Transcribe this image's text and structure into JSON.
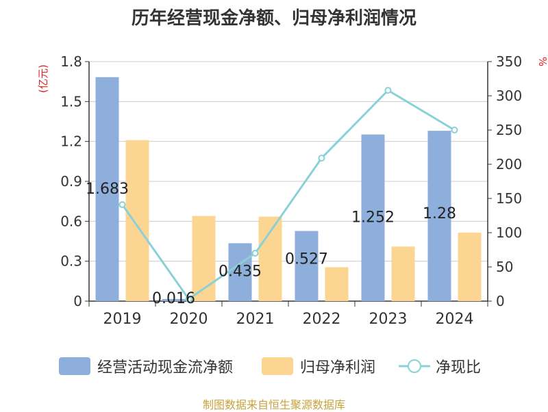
{
  "title": "历年经营现金净额、归母净利润情况",
  "source": "制图数据来自恒生聚源数据库",
  "colors": {
    "cash_flow": "#8eaedc",
    "net_profit": "#fdd592",
    "ratio": "#88d1d7",
    "axis_unit": "#e02020",
    "grid": "#cccccc",
    "text": "#333333"
  },
  "legend": {
    "cash_flow": "经营活动现金流净额",
    "net_profit": "归母净利润",
    "ratio": "净现比"
  },
  "chart_data": {
    "type": "bar",
    "title": "历年经营现金净额、归母净利润情况",
    "categories": [
      "2019",
      "2020",
      "2021",
      "2022",
      "2023",
      "2024"
    ],
    "y_left": {
      "unit": "(亿元)",
      "range": [
        0,
        1.8
      ],
      "ticks": [
        "0",
        "0.3",
        "0.6",
        "0.9",
        "1.2",
        "1.5",
        "1.8"
      ]
    },
    "y_right": {
      "unit": "%",
      "range": [
        0,
        350
      ],
      "ticks": [
        "0",
        "50",
        "100",
        "150",
        "200",
        "250",
        "300",
        "350"
      ]
    },
    "series": [
      {
        "name": "经营活动现金流净额",
        "type": "bar",
        "axis": "left",
        "values": [
          1.683,
          0.016,
          0.435,
          0.527,
          1.252,
          1.28
        ],
        "labels": [
          "1.683",
          "0.016",
          "0.435",
          "0.527",
          "1.252",
          "1.28"
        ]
      },
      {
        "name": "归母净利润",
        "type": "bar",
        "axis": "left",
        "values": [
          1.21,
          0.64,
          0.635,
          0.255,
          0.41,
          0.515
        ]
      },
      {
        "name": "净现比",
        "type": "line",
        "axis": "right",
        "values": [
          141,
          3,
          70,
          209,
          308,
          250
        ]
      }
    ]
  }
}
